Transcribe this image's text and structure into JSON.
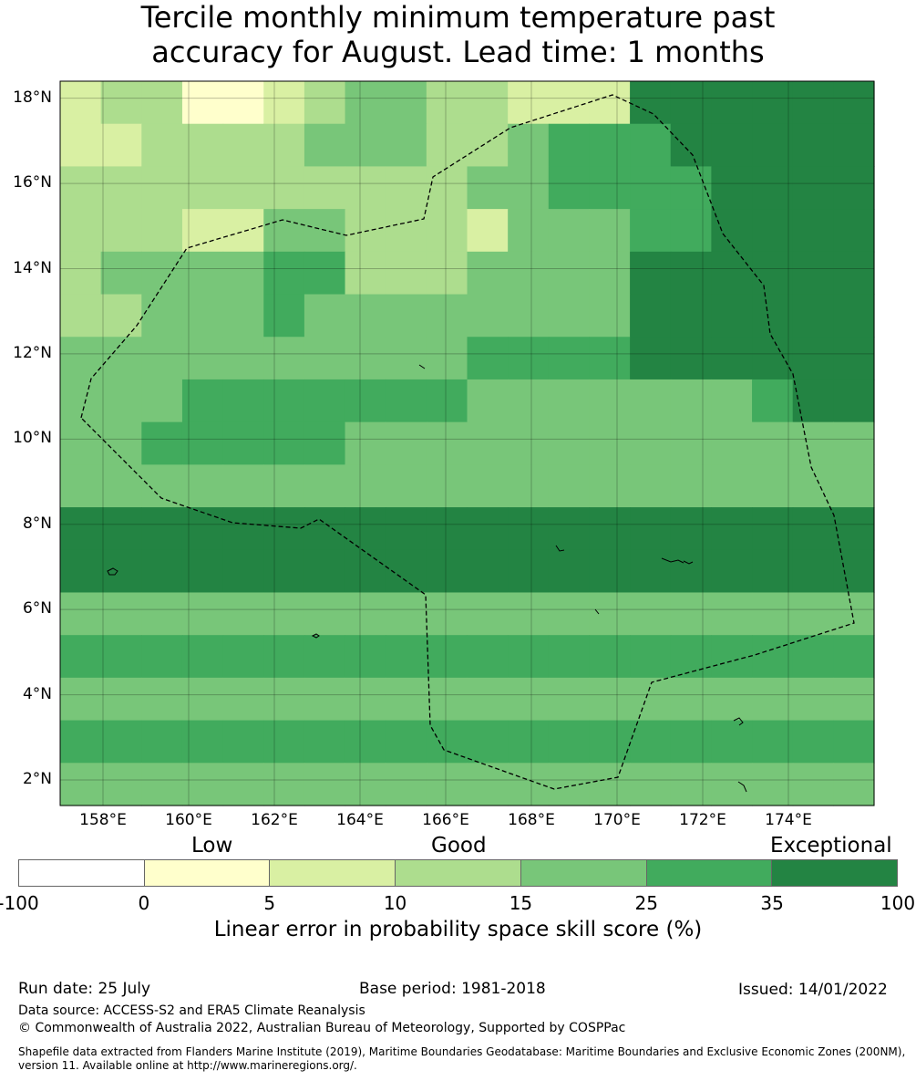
{
  "title": {
    "line1": "Tercile monthly minimum temperature past",
    "line2": "accuracy for August. Lead time: 1 months"
  },
  "map": {
    "lon_range": [
      157,
      176
    ],
    "lat_range": [
      1.4,
      18.4
    ],
    "lat_labels": [
      "18°N",
      "16°N",
      "14°N",
      "12°N",
      "10°N",
      "8°N",
      "6°N",
      "4°N",
      "2°N"
    ],
    "lat_values": [
      18,
      16,
      14,
      12,
      10,
      8,
      6,
      4,
      2
    ],
    "lon_labels": [
      "158°E",
      "160°E",
      "162°E",
      "164°E",
      "166°E",
      "168°E",
      "170°E",
      "172°E",
      "174°E"
    ],
    "lon_values": [
      158,
      160,
      162,
      164,
      166,
      168,
      170,
      172,
      174
    ],
    "grid_on": true,
    "boundary_style": "dashed",
    "colors": [
      "#ffffcc",
      "#d9f0a3",
      "#addd8e",
      "#78c679",
      "#41ab5d",
      "#238443"
    ],
    "rows": [
      "23311234433222666666",
      "22333344433455566666",
      "33333333334455556666",
      "33322443332444556666",
      "34444553334444666666",
      "33444544444444666666",
      "44444444445555666666",
      "44455555554444444566",
      "44555554444444444444",
      "44444444444444444444",
      "66666666666666666666",
      "66666666666666666666",
      "44444444444444444444",
      "55555555555555555555",
      "44444444444444444444",
      "55555555555555555555",
      "44444444444444444444"
    ]
  },
  "legend": {
    "categories": [
      "Low",
      "Good",
      "Exceptional"
    ],
    "colors": [
      "#ffffff",
      "#ffffcc",
      "#d9f0a3",
      "#addd8e",
      "#78c679",
      "#41ab5d",
      "#238443"
    ],
    "ticks": [
      "-100",
      "0",
      "5",
      "10",
      "15",
      "25",
      "35",
      "100"
    ],
    "title": "Linear error in probability space skill score (%)"
  },
  "footer": {
    "run_date": "Run date: 25 July",
    "base_period": "Base period: 1981-2018",
    "issued": "Issued: 14/01/2022",
    "data_source": "Data source: ACCESS-S2 and ERA5 Climate Reanalysis",
    "copyright": "© Commonwealth of Australia 2022, Australian Bureau of Meteorology, Supported by COSPPac",
    "shapefile": "Shapefile data extracted from Flanders Marine Institute (2019), Maritime Boundaries Geodatabase: Maritime Boundaries and Exclusive Economic Zones (200NM), version 11. Available online at http://www.marineregions.org/."
  }
}
